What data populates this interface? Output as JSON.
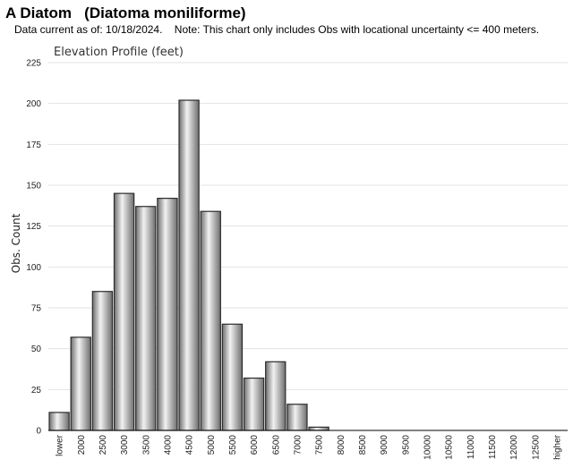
{
  "header": {
    "title": "A Diatom   (Diatoma moniliforme)",
    "note": "Data current as of: 10/18/2024.    Note: This chart only includes Obs with locational uncertainty <= 400 meters."
  },
  "chart_data": {
    "type": "bar",
    "title": "Elevation Profile (feet)",
    "xlabel": "",
    "ylabel": "Obs. Count",
    "ylim": [
      0,
      225
    ],
    "yticks": [
      0,
      25,
      50,
      75,
      100,
      125,
      150,
      175,
      200,
      225
    ],
    "grid": true,
    "categories": [
      "lower",
      "2000",
      "2500",
      "3000",
      "3500",
      "4000",
      "4500",
      "5000",
      "5500",
      "6000",
      "6500",
      "7000",
      "7500",
      "8000",
      "8500",
      "9000",
      "9500",
      "10000",
      "10500",
      "11000",
      "11500",
      "12000",
      "12500",
      "higher"
    ],
    "values": [
      11,
      57,
      85,
      145,
      137,
      142,
      202,
      134,
      65,
      32,
      42,
      16,
      2,
      0,
      0,
      0,
      0,
      0,
      0,
      0,
      0,
      0,
      0,
      0
    ],
    "colors": {
      "bar_light": "#f2f2f2",
      "bar_dark": "#6e6e6e",
      "bar_stroke": "#2b2b2b",
      "grid": "#e3e3e3",
      "axis": "#000000"
    }
  }
}
